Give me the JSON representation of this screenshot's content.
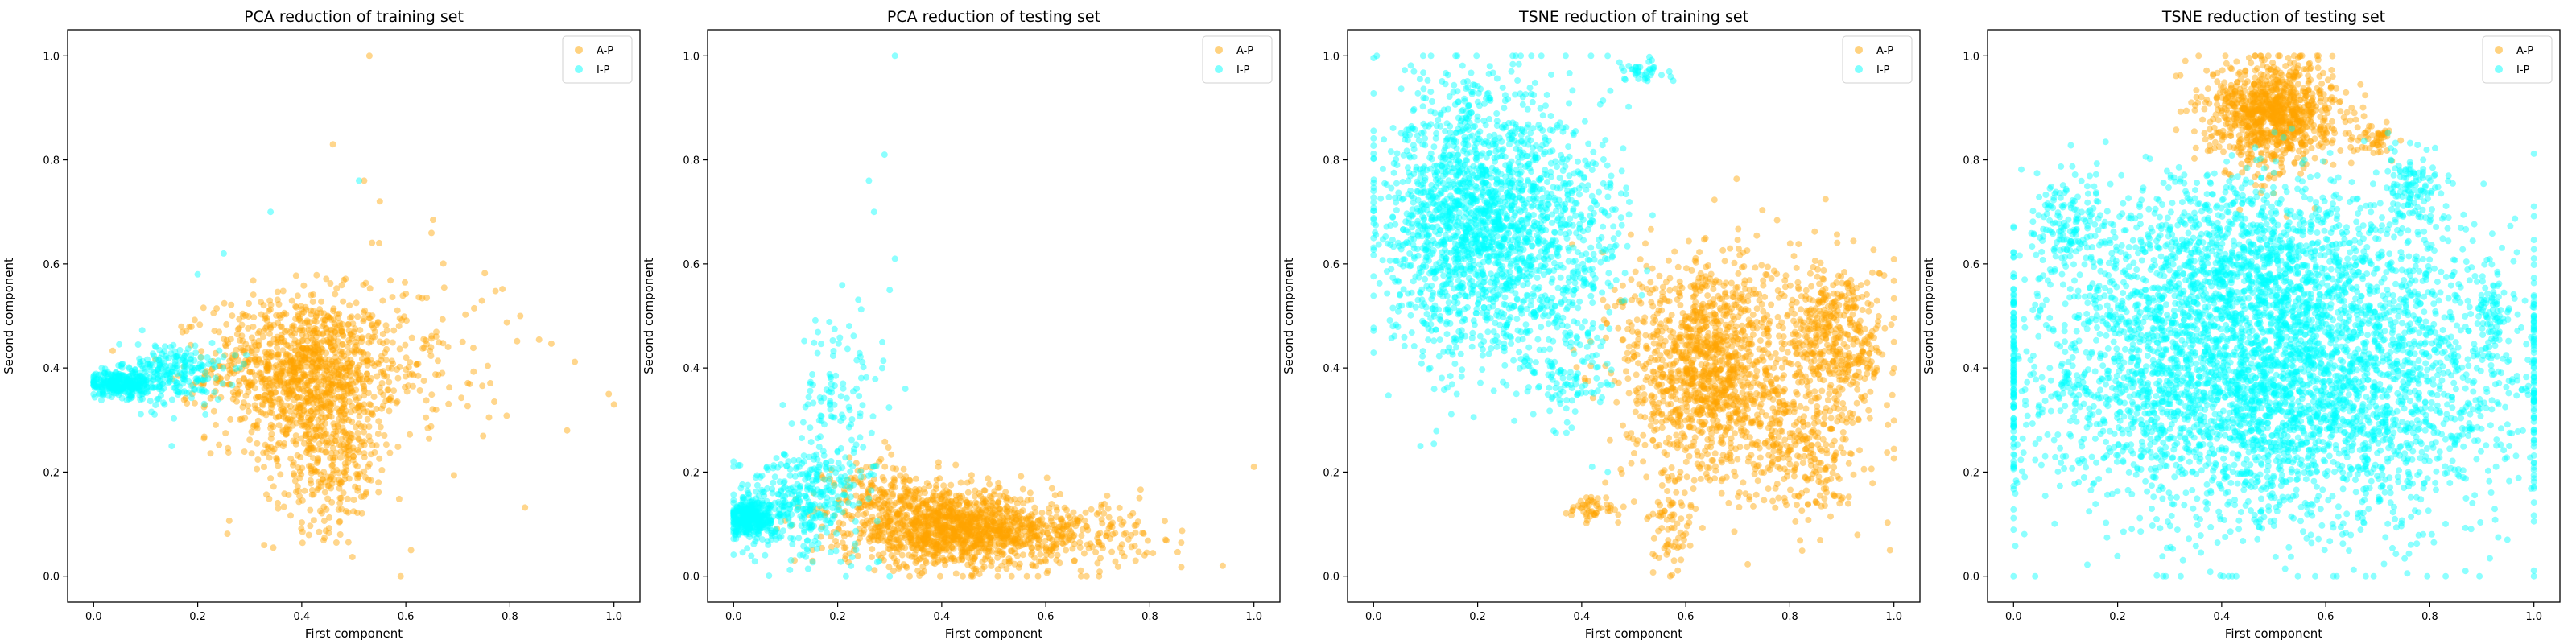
{
  "figure": {
    "background": "#ffffff"
  },
  "colors": {
    "A-P": "#ffa500",
    "I-P": "#00ffff"
  },
  "chart_data": [
    {
      "type": "scatter",
      "title": "PCA reduction of training set",
      "xlabel": "First component",
      "ylabel": "Second component",
      "xlim": [
        -0.05,
        1.05
      ],
      "ylim": [
        -0.05,
        1.05
      ],
      "xticks": [
        "0.0",
        "0.2",
        "0.4",
        "0.6",
        "0.8",
        "1.0"
      ],
      "yticks": [
        "0.0",
        "0.2",
        "0.4",
        "0.6",
        "0.8",
        "1.0"
      ],
      "grid": false,
      "legend": "top-right",
      "series": [
        {
          "name": "A-P",
          "color": "#ffa500",
          "clusters": [
            {
              "cx": 0.4,
              "cy": 0.4,
              "sx": 0.09,
              "sy": 0.07,
              "n": 1000
            },
            {
              "cx": 0.45,
              "cy": 0.25,
              "sx": 0.06,
              "sy": 0.08,
              "n": 400
            },
            {
              "cx": 0.58,
              "cy": 0.42,
              "sx": 0.12,
              "sy": 0.1,
              "n": 150
            }
          ],
          "points": [
            [
              0.53,
              1.0
            ],
            [
              0.46,
              0.83
            ],
            [
              0.52,
              0.76
            ],
            [
              0.55,
              0.72
            ],
            [
              0.99,
              0.35
            ],
            [
              1.0,
              0.33
            ],
            [
              0.91,
              0.28
            ],
            [
              0.82,
              0.5
            ],
            [
              0.61,
              0.05
            ],
            [
              0.59,
              0.0
            ]
          ]
        },
        {
          "name": "I-P",
          "color": "#00ffff",
          "clusters": [
            {
              "cx": 0.05,
              "cy": 0.37,
              "sx": 0.03,
              "sy": 0.012,
              "n": 300
            },
            {
              "cx": 0.15,
              "cy": 0.39,
              "sx": 0.05,
              "sy": 0.03,
              "n": 250
            }
          ],
          "points": [
            [
              0.34,
              0.7
            ],
            [
              0.2,
              0.58
            ],
            [
              0.25,
              0.62
            ],
            [
              0.51,
              0.76
            ],
            [
              0.15,
              0.25
            ]
          ]
        }
      ]
    },
    {
      "type": "scatter",
      "title": "PCA reduction of testing set",
      "xlabel": "First component",
      "ylabel": "Second component",
      "xlim": [
        -0.05,
        1.05
      ],
      "ylim": [
        -0.05,
        1.05
      ],
      "xticks": [
        "0.0",
        "0.2",
        "0.4",
        "0.6",
        "0.8",
        "1.0"
      ],
      "yticks": [
        "0.0",
        "0.2",
        "0.4",
        "0.6",
        "0.8",
        "1.0"
      ],
      "grid": false,
      "legend": "top-right",
      "series": [
        {
          "name": "A-P",
          "color": "#ffa500",
          "clusters": [
            {
              "cx": 0.42,
              "cy": 0.09,
              "sx": 0.1,
              "sy": 0.035,
              "n": 1100
            },
            {
              "cx": 0.6,
              "cy": 0.08,
              "sx": 0.1,
              "sy": 0.03,
              "n": 300
            },
            {
              "cx": 0.3,
              "cy": 0.15,
              "sx": 0.06,
              "sy": 0.04,
              "n": 200
            }
          ],
          "points": [
            [
              1.0,
              0.21
            ],
            [
              0.94,
              0.02
            ],
            [
              0.83,
              0.07
            ],
            [
              0.78,
              0.15
            ],
            [
              0.72,
              0.13
            ]
          ]
        },
        {
          "name": "I-P",
          "color": "#00ffff",
          "clusters": [
            {
              "cx": 0.03,
              "cy": 0.11,
              "sx": 0.02,
              "sy": 0.015,
              "n": 350
            },
            {
              "cx": 0.12,
              "cy": 0.14,
              "sx": 0.06,
              "sy": 0.05,
              "n": 350
            },
            {
              "cx": 0.2,
              "cy": 0.3,
              "sx": 0.04,
              "sy": 0.1,
              "n": 150
            }
          ],
          "points": [
            [
              0.31,
              1.0
            ],
            [
              0.29,
              0.81
            ],
            [
              0.26,
              0.76
            ],
            [
              0.27,
              0.7
            ],
            [
              0.31,
              0.61
            ],
            [
              0.3,
              0.55
            ],
            [
              0.3,
              0.0
            ],
            [
              0.33,
              0.36
            ]
          ]
        }
      ]
    },
    {
      "type": "scatter",
      "title": "TSNE reduction of training set",
      "xlabel": "First component",
      "ylabel": "Second component",
      "xlim": [
        -0.05,
        1.05
      ],
      "ylim": [
        -0.05,
        1.05
      ],
      "xticks": [
        "0.0",
        "0.2",
        "0.4",
        "0.6",
        "0.8",
        "1.0"
      ],
      "yticks": [
        "0.0",
        "0.2",
        "0.4",
        "0.6",
        "0.8",
        "1.0"
      ],
      "grid": false,
      "legend": "top-right",
      "series": [
        {
          "name": "A-P",
          "color": "#ffa500",
          "clusters": [
            {
              "cx": 0.64,
              "cy": 0.4,
              "sx": 0.08,
              "sy": 0.11,
              "n": 1300
            },
            {
              "cx": 0.89,
              "cy": 0.46,
              "sx": 0.05,
              "sy": 0.07,
              "n": 450
            },
            {
              "cx": 0.83,
              "cy": 0.25,
              "sx": 0.06,
              "sy": 0.07,
              "n": 300
            },
            {
              "cx": 0.57,
              "cy": 0.08,
              "sx": 0.02,
              "sy": 0.04,
              "n": 60
            },
            {
              "cx": 0.42,
              "cy": 0.13,
              "sx": 0.025,
              "sy": 0.015,
              "n": 50
            }
          ],
          "points": []
        },
        {
          "name": "I-P",
          "color": "#00ffff",
          "clusters": [
            {
              "cx": 0.2,
              "cy": 0.68,
              "sx": 0.09,
              "sy": 0.13,
              "n": 1800
            },
            {
              "cx": 0.37,
              "cy": 0.64,
              "sx": 0.06,
              "sy": 0.12,
              "n": 350
            },
            {
              "cx": 0.52,
              "cy": 0.97,
              "sx": 0.025,
              "sy": 0.012,
              "n": 40
            },
            {
              "cx": 0.38,
              "cy": 0.38,
              "sx": 0.04,
              "sy": 0.05,
              "n": 80
            }
          ],
          "points": [
            [
              0.09,
              0.25
            ],
            [
              0.16,
              0.35
            ],
            [
              0.45,
              0.2
            ],
            [
              0.42,
              0.21
            ]
          ]
        }
      ]
    },
    {
      "type": "scatter",
      "title": "TSNE reduction of testing set",
      "xlabel": "First component",
      "ylabel": "Second component",
      "xlim": [
        -0.05,
        1.05
      ],
      "ylim": [
        -0.05,
        1.05
      ],
      "xticks": [
        "0.0",
        "0.2",
        "0.4",
        "0.6",
        "0.8",
        "1.0"
      ],
      "yticks": [
        "0.0",
        "0.2",
        "0.4",
        "0.6",
        "0.8",
        "1.0"
      ],
      "grid": false,
      "legend": "top-right",
      "series": [
        {
          "name": "A-P",
          "color": "#ffa500",
          "clusters": [
            {
              "cx": 0.5,
              "cy": 0.89,
              "sx": 0.06,
              "sy": 0.05,
              "n": 1000
            },
            {
              "cx": 0.7,
              "cy": 0.84,
              "sx": 0.02,
              "sy": 0.015,
              "n": 50
            }
          ],
          "points": []
        },
        {
          "name": "I-P",
          "color": "#00ffff",
          "clusters": [
            {
              "cx": 0.5,
              "cy": 0.38,
              "sx": 0.25,
              "sy": 0.14,
              "n": 4200
            },
            {
              "cx": 0.45,
              "cy": 0.62,
              "sx": 0.15,
              "sy": 0.08,
              "n": 900
            },
            {
              "cx": 0.1,
              "cy": 0.69,
              "sx": 0.03,
              "sy": 0.05,
              "n": 120
            },
            {
              "cx": 0.77,
              "cy": 0.74,
              "sx": 0.03,
              "sy": 0.04,
              "n": 120
            },
            {
              "cx": 0.92,
              "cy": 0.52,
              "sx": 0.02,
              "sy": 0.04,
              "n": 60
            }
          ],
          "points": []
        }
      ]
    }
  ]
}
